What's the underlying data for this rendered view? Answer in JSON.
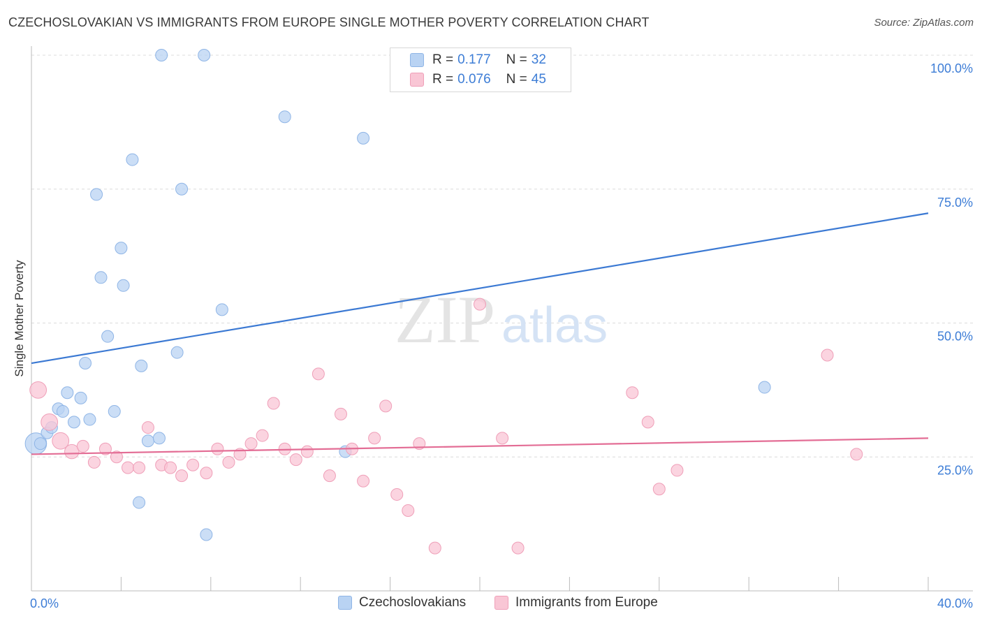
{
  "title": "CZECHOSLOVAKIAN VS IMMIGRANTS FROM EUROPE SINGLE MOTHER POVERTY CORRELATION CHART",
  "source": "Source: ZipAtlas.com",
  "watermark": {
    "zip": "ZIP",
    "atlas": "atlas"
  },
  "colors": {
    "blue_fill": "#b9d3f3",
    "blue_stroke": "#8fb5e6",
    "blue_line": "#3b79d3",
    "pink_fill": "#f9c6d5",
    "pink_stroke": "#ef9fb8",
    "pink_line": "#e36d95",
    "axis_label": "#3d7dd6",
    "grid": "#dcdcdc"
  },
  "legend": {
    "rows": [
      {
        "r_label": "R =",
        "r_value": "0.177",
        "n_label": "N =",
        "n_value": "32"
      },
      {
        "r_label": "R =",
        "r_value": "0.076",
        "n_label": "N =",
        "n_value": "45"
      }
    ]
  },
  "chart_data": {
    "type": "scatter",
    "title": "CZECHOSLOVAKIAN VS IMMIGRANTS FROM EUROPE SINGLE MOTHER POVERTY CORRELATION CHART",
    "xlabel": "",
    "ylabel": "Single Mother Poverty",
    "xlim": [
      0,
      40
    ],
    "ylim": [
      0,
      100
    ],
    "x_tick_labels": [
      "0.0%",
      "40.0%"
    ],
    "y_ticks": [
      25,
      50,
      75,
      100
    ],
    "y_tick_labels": [
      "25.0%",
      "50.0%",
      "75.0%",
      "100.0%"
    ],
    "grid": true,
    "legend_position": "top-center",
    "series": [
      {
        "name": "Czechoslovakians",
        "color": "#b9d3f3",
        "trend": {
          "x": [
            0,
            40
          ],
          "y": [
            42.5,
            70.5
          ]
        },
        "points": [
          {
            "x": 0.2,
            "y": 27.5,
            "s": 1.8
          },
          {
            "x": 0.4,
            "y": 27.5,
            "s": 1
          },
          {
            "x": 0.7,
            "y": 29.5,
            "s": 1
          },
          {
            "x": 0.9,
            "y": 30.5,
            "s": 1
          },
          {
            "x": 1.2,
            "y": 34
          },
          {
            "x": 1.4,
            "y": 33.5
          },
          {
            "x": 1.6,
            "y": 37
          },
          {
            "x": 1.9,
            "y": 31.5
          },
          {
            "x": 2.2,
            "y": 36
          },
          {
            "x": 2.4,
            "y": 42.5
          },
          {
            "x": 2.6,
            "y": 32
          },
          {
            "x": 2.9,
            "y": 74
          },
          {
            "x": 3.1,
            "y": 58.5
          },
          {
            "x": 3.4,
            "y": 47.5
          },
          {
            "x": 3.7,
            "y": 33.5
          },
          {
            "x": 4.0,
            "y": 64
          },
          {
            "x": 4.1,
            "y": 57
          },
          {
            "x": 4.5,
            "y": 80.5
          },
          {
            "x": 4.8,
            "y": 16.5
          },
          {
            "x": 4.9,
            "y": 42
          },
          {
            "x": 5.2,
            "y": 28
          },
          {
            "x": 5.7,
            "y": 28.5
          },
          {
            "x": 5.8,
            "y": 100
          },
          {
            "x": 6.5,
            "y": 44.5
          },
          {
            "x": 6.7,
            "y": 75
          },
          {
            "x": 7.7,
            "y": 100
          },
          {
            "x": 7.8,
            "y": 10.5
          },
          {
            "x": 8.5,
            "y": 52.5
          },
          {
            "x": 11.3,
            "y": 88.5
          },
          {
            "x": 14.0,
            "y": 26
          },
          {
            "x": 14.8,
            "y": 84.5
          },
          {
            "x": 32.7,
            "y": 38
          }
        ]
      },
      {
        "name": "Immigrants from Europe",
        "color": "#f9c6d5",
        "trend": {
          "x": [
            0,
            40
          ],
          "y": [
            25.5,
            28.5
          ]
        },
        "points": [
          {
            "x": 0.3,
            "y": 37.5,
            "s": 1.4
          },
          {
            "x": 0.8,
            "y": 31.5,
            "s": 1.4
          },
          {
            "x": 1.3,
            "y": 28,
            "s": 1.4
          },
          {
            "x": 1.8,
            "y": 26,
            "s": 1.2
          },
          {
            "x": 2.3,
            "y": 27
          },
          {
            "x": 2.8,
            "y": 24
          },
          {
            "x": 3.3,
            "y": 26.5
          },
          {
            "x": 3.8,
            "y": 25
          },
          {
            "x": 4.3,
            "y": 23
          },
          {
            "x": 4.8,
            "y": 23
          },
          {
            "x": 5.2,
            "y": 30.5
          },
          {
            "x": 5.8,
            "y": 23.5
          },
          {
            "x": 6.2,
            "y": 23
          },
          {
            "x": 6.7,
            "y": 21.5
          },
          {
            "x": 7.2,
            "y": 23.5
          },
          {
            "x": 7.8,
            "y": 22
          },
          {
            "x": 8.3,
            "y": 26.5
          },
          {
            "x": 8.8,
            "y": 24
          },
          {
            "x": 9.3,
            "y": 25.5
          },
          {
            "x": 9.8,
            "y": 27.5
          },
          {
            "x": 10.3,
            "y": 29
          },
          {
            "x": 10.8,
            "y": 35
          },
          {
            "x": 11.3,
            "y": 26.5
          },
          {
            "x": 11.8,
            "y": 24.5
          },
          {
            "x": 12.3,
            "y": 26
          },
          {
            "x": 12.8,
            "y": 40.5
          },
          {
            "x": 13.3,
            "y": 21.5
          },
          {
            "x": 13.8,
            "y": 33
          },
          {
            "x": 14.3,
            "y": 26.5
          },
          {
            "x": 14.8,
            "y": 20.5
          },
          {
            "x": 15.3,
            "y": 28.5
          },
          {
            "x": 15.8,
            "y": 34.5
          },
          {
            "x": 16.3,
            "y": 18
          },
          {
            "x": 16.8,
            "y": 15
          },
          {
            "x": 17.3,
            "y": 27.5
          },
          {
            "x": 18.0,
            "y": 8
          },
          {
            "x": 20.0,
            "y": 53.5
          },
          {
            "x": 21.0,
            "y": 28.5
          },
          {
            "x": 21.7,
            "y": 8
          },
          {
            "x": 26.8,
            "y": 37
          },
          {
            "x": 27.5,
            "y": 31.5
          },
          {
            "x": 28.0,
            "y": 19
          },
          {
            "x": 28.8,
            "y": 22.5
          },
          {
            "x": 35.5,
            "y": 44
          },
          {
            "x": 36.8,
            "y": 25.5
          }
        ]
      }
    ]
  }
}
